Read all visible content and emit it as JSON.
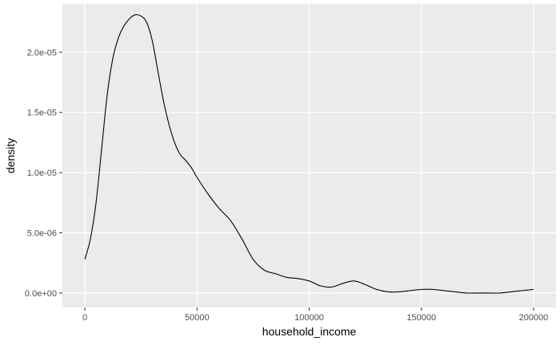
{
  "chart_data": {
    "type": "line",
    "title": "",
    "xlabel": "household_income",
    "ylabel": "density",
    "xlim": [
      -10000,
      210000
    ],
    "ylim": [
      -1.2e-06,
      2.4e-05
    ],
    "x_ticks": [
      0,
      50000,
      100000,
      150000,
      200000
    ],
    "x_tick_labels": [
      "0",
      "50000",
      "100000",
      "150000",
      "200000"
    ],
    "y_ticks": [
      0,
      5e-06,
      1e-05,
      1.5e-05,
      2e-05
    ],
    "y_tick_labels": [
      "0.0e+00",
      "5.0e-06",
      "1.0e-05",
      "1.5e-05",
      "2.0e-05"
    ],
    "grid": true,
    "series": [
      {
        "name": "density",
        "x": [
          0,
          2500,
          5000,
          7500,
          10000,
          12500,
          15000,
          17500,
          20000,
          22500,
          25000,
          27500,
          30000,
          32500,
          35000,
          37500,
          40000,
          42500,
          45000,
          47500,
          50000,
          55000,
          60000,
          65000,
          70000,
          75000,
          80000,
          85000,
          90000,
          95000,
          100000,
          105000,
          110000,
          115000,
          120000,
          125000,
          130000,
          135000,
          140000,
          145000,
          150000,
          155000,
          160000,
          165000,
          170000,
          175000,
          180000,
          185000,
          190000,
          195000,
          200000
        ],
        "values": [
          2.8e-06,
          4.5e-06,
          7.5e-06,
          1.2e-05,
          1.65e-05,
          1.95e-05,
          2.12e-05,
          2.22e-05,
          2.28e-05,
          2.31e-05,
          2.3e-05,
          2.25e-05,
          2.1e-05,
          1.85e-05,
          1.6e-05,
          1.4e-05,
          1.25e-05,
          1.15e-05,
          1.1e-05,
          1.04e-05,
          9.6e-06,
          8.2e-06,
          7e-06,
          6e-06,
          4.5e-06,
          2.8e-06,
          1.9e-06,
          1.6e-06,
          1.3e-06,
          1.2e-06,
          1e-06,
          6e-07,
          5e-07,
          8e-07,
          1e-06,
          7e-07,
          3e-07,
          1e-07,
          1e-07,
          2e-07,
          3e-07,
          3e-07,
          2e-07,
          1e-07,
          0.0,
          0.0,
          0.0,
          0.0,
          1e-07,
          2e-07,
          3e-07
        ]
      }
    ],
    "colors": {
      "panel_background": "#ebebeb",
      "major_grid": "#ffffff",
      "minor_grid": "#f5f5f5",
      "line": "#000000",
      "tick_text": "#4d4d4d",
      "tick_mark": "#333333"
    }
  }
}
